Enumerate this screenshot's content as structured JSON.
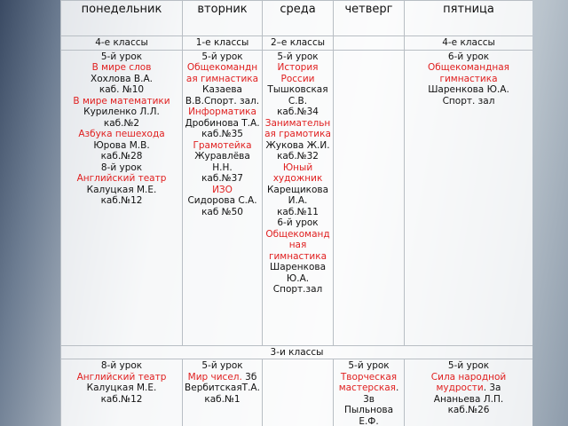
{
  "days": [
    "понедельник",
    "вторник",
    "среда",
    "четверг",
    "пятница"
  ],
  "top": {
    "groups": [
      "4-е классы",
      "1-е классы",
      "2–е классы",
      null,
      "4-е классы"
    ],
    "cells": [
      [
        "5-й урок",
        {
          "text": "В мире слов",
          "color": "#e02020"
        },
        "Хохлова В.А.",
        "каб. №10",
        {
          "text": "В мире математики",
          "color": "#e02020"
        },
        "Куриленко Л.Л.",
        "каб.№2",
        {
          "text": "Азбука пешехода",
          "color": "#e02020"
        },
        "Юрова М.В.",
        "каб.№28",
        "8-й урок",
        {
          "text": "Английский театр",
          "color": "#e02020"
        },
        "Калуцкая М.Е.",
        "каб.№12"
      ],
      [
        "5-й урок",
        {
          "text": "Общекомандная гимнастика",
          "color": "#e02020"
        },
        "Казаева В.В.Спорт. зал.",
        {
          "text": "Информатика",
          "color": "#e02020"
        },
        "Дробинова Т.А.",
        "каб.№35",
        {
          "text": "Грамотейка",
          "color": "#e02020"
        },
        "Журавлёва Н.Н.",
        "каб.№37",
        {
          "text": "ИЗО",
          "color": "#e02020"
        },
        "Сидорова С.А. каб №50"
      ],
      [
        "5-й урок",
        {
          "text": "История России",
          "color": "#e02020"
        },
        "Тышковская С.В.",
        "каб.№34",
        {
          "text": "Занимательная грамотика",
          "color": "#e02020"
        },
        "Жукова Ж.И.",
        "каб.№32",
        {
          "text": "Юный художник",
          "color": "#e02020"
        },
        "Карещикова И.А.",
        "каб.№11",
        "6-й урок",
        {
          "text": "Общекомандная гимнастика",
          "color": "#e02020"
        },
        "Шаренкова Ю.А.",
        "Спорт.зал"
      ],
      [],
      [
        "6-й урок",
        {
          "text": "Общекомандная гимнастика",
          "color": "#e02020"
        },
        "Шаренкова Ю.А.",
        "Спорт. зал"
      ]
    ]
  },
  "bottom": {
    "group": "3-и классы",
    "cells": [
      [
        "8-й урок",
        {
          "text": "Английский театр",
          "color": "#e02020"
        },
        "Калуцкая М.Е.",
        "каб.№12"
      ],
      [
        "5-й урок",
        [
          {
            "text": "Мир чисел.",
            "color": "#e02020"
          },
          {
            "text": " 3б"
          }
        ],
        "ВербитскаяТ.А.",
        "каб.№1"
      ],
      [],
      [
        "5-й урок",
        [
          {
            "text": "Творческая мастерская",
            "color": "#e02020"
          },
          {
            "text": ". 3в"
          }
        ],
        "Пыльнова Е.Ф."
      ],
      [
        "5-й урок",
        [
          {
            "text": "Сила народной мудрости",
            "color": "#e02020"
          },
          {
            "text": ". 3а"
          }
        ],
        "Ананьева Л.П.",
        "каб.№26"
      ]
    ]
  }
}
